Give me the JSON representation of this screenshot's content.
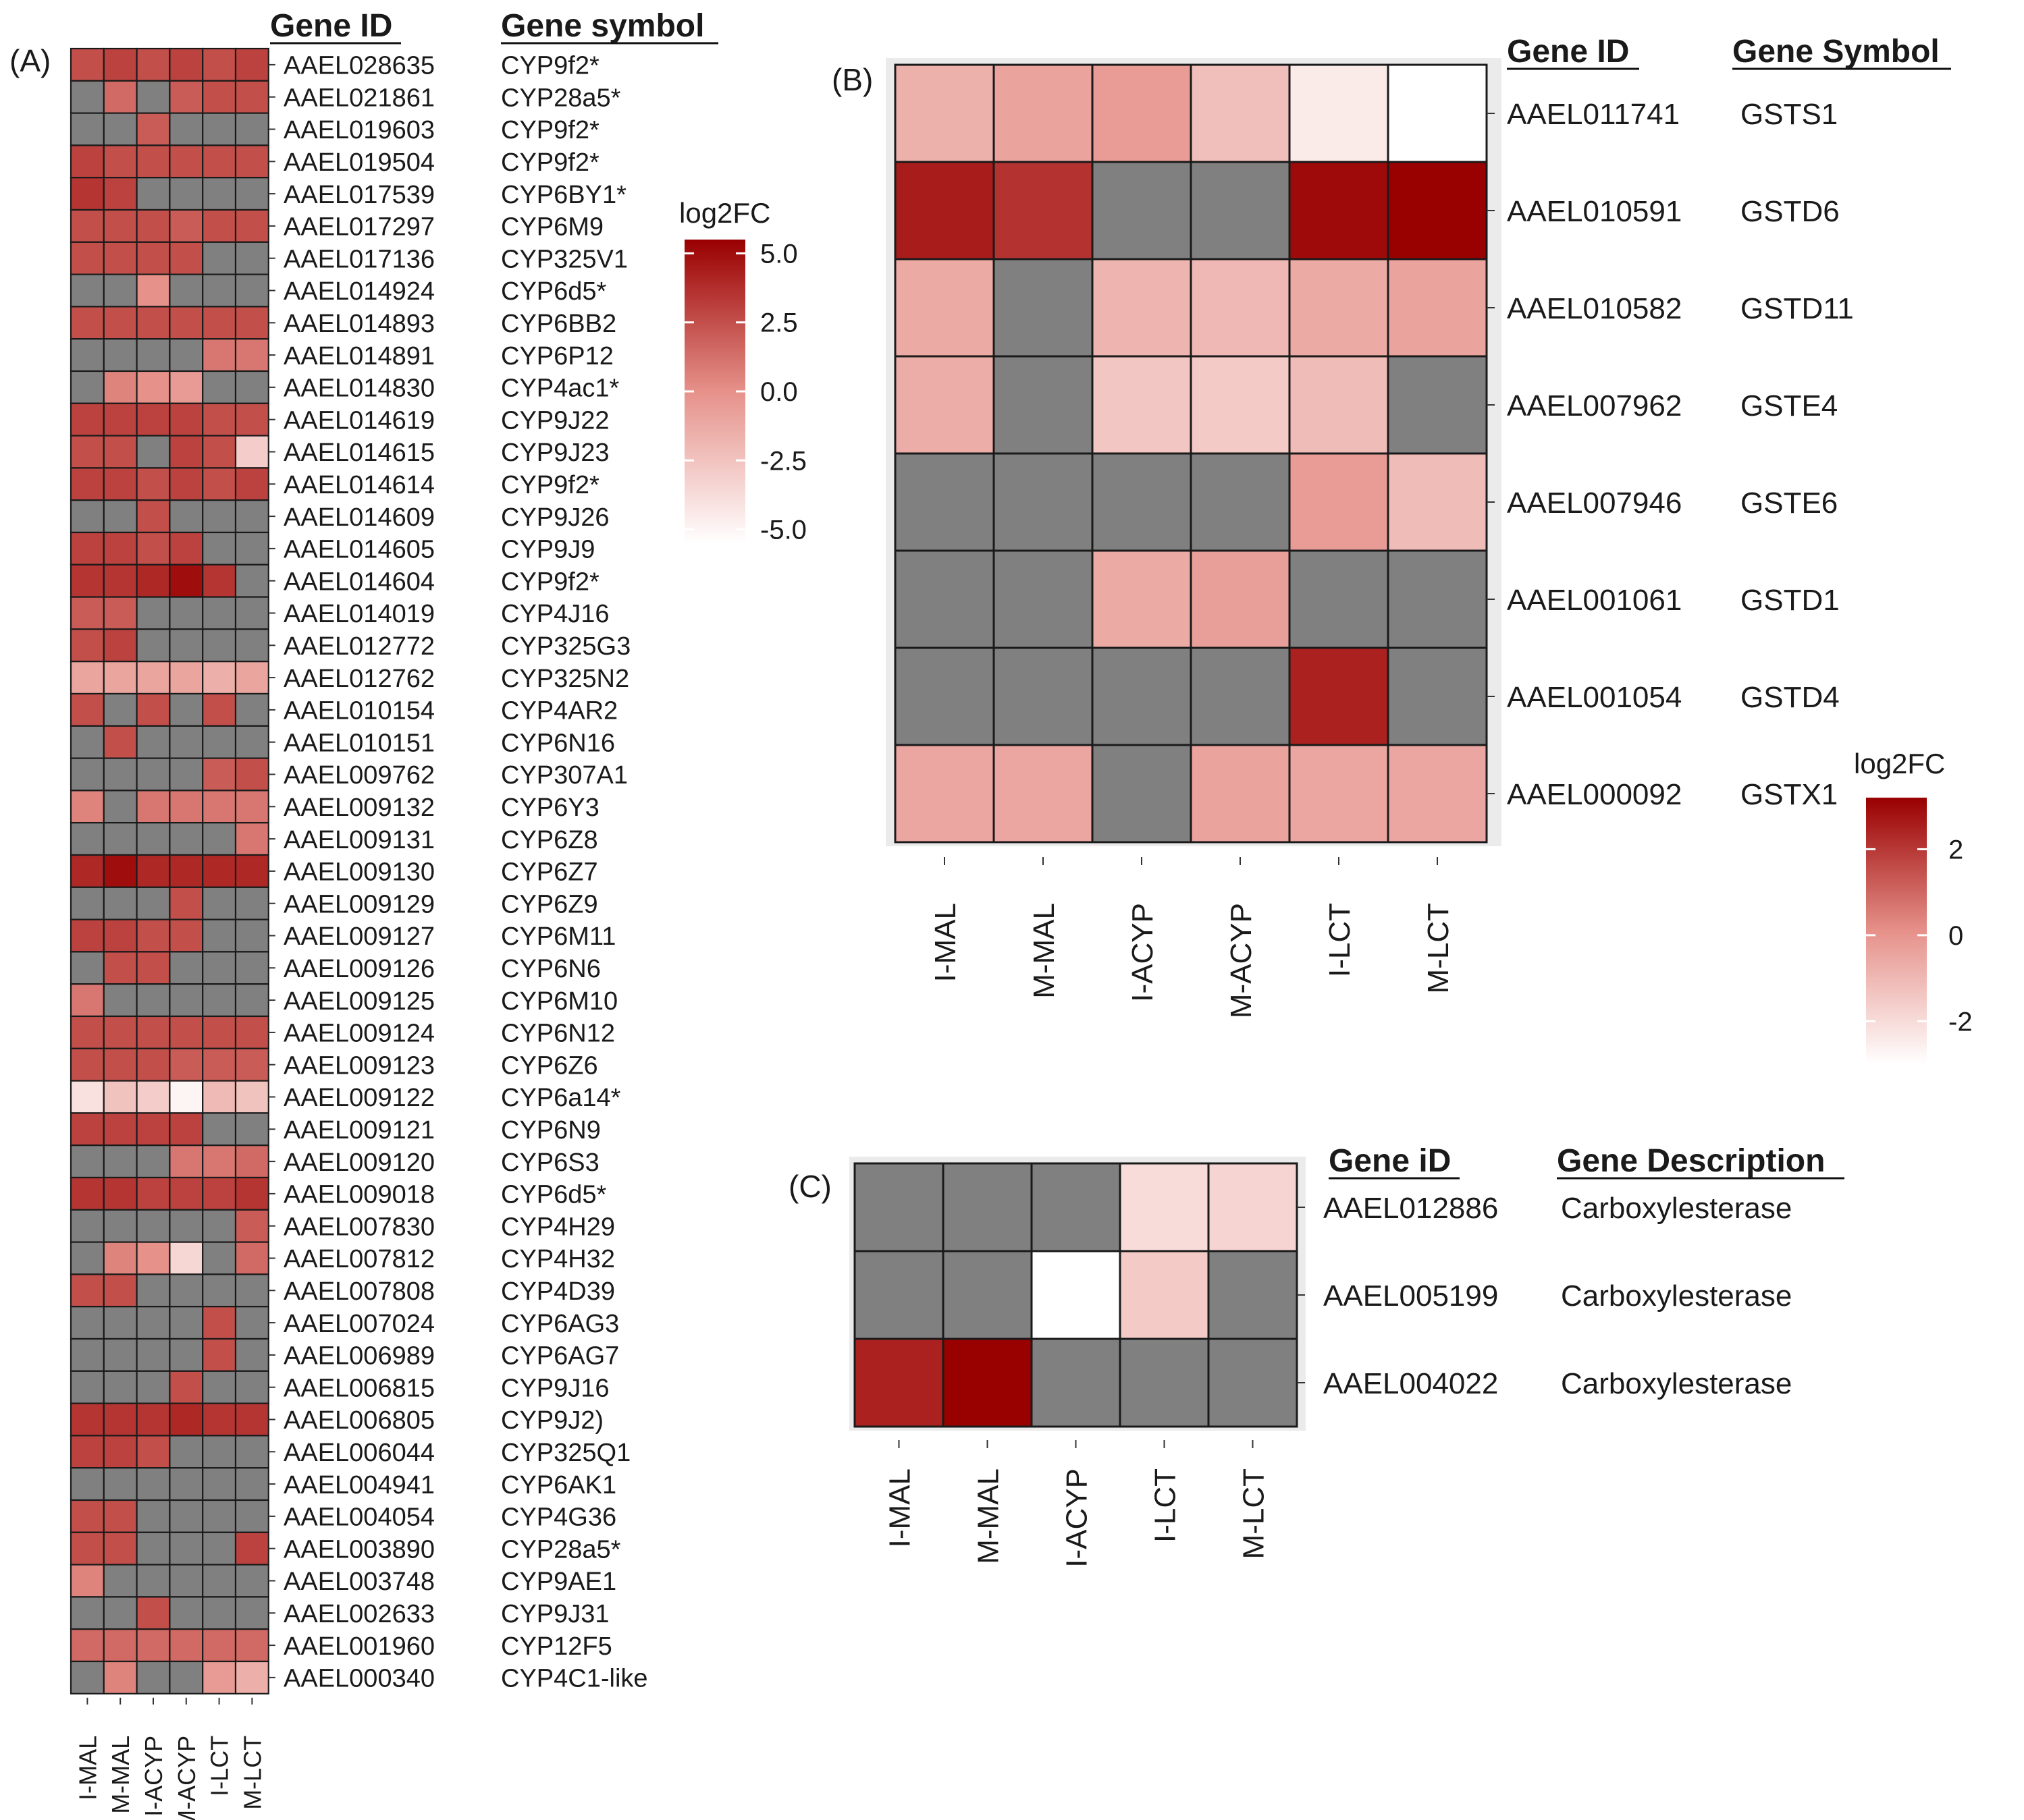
{
  "figure": {
    "missing_color": "#808080",
    "high_color": "#990000",
    "low_color": "#ffffff",
    "mid_color": "#e6918a"
  },
  "chart_data": [
    {
      "panel": "A",
      "label": "(A)",
      "type": "heatmap",
      "header_id": "Gene ID",
      "header_symbol": "Gene symbol",
      "columns": [
        "I-MAL",
        "M-MAL",
        "I-ACYP",
        "M-ACYP",
        "I-LCT",
        "M-LCT"
      ],
      "legend": {
        "title": "log2FC",
        "ticks": [
          5.0,
          2.5,
          0.0,
          -2.5,
          -5.0
        ],
        "tick_labels": [
          "5.0",
          "2.5",
          "0.0",
          "-2.5",
          "-5.0"
        ],
        "range": [
          -5.5,
          5.5
        ]
      },
      "rows": [
        {
          "id": "AAEL028635",
          "symbol": "CYP9f2*",
          "values": [
            2.5,
            3.0,
            2.5,
            3.0,
            2.5,
            3.0
          ]
        },
        {
          "id": "AAEL021861",
          "symbol": "CYP28a5*",
          "values": [
            null,
            1.5,
            null,
            2.0,
            2.5,
            2.5
          ]
        },
        {
          "id": "AAEL019603",
          "symbol": "CYP9f2*",
          "values": [
            null,
            null,
            2.0,
            null,
            null,
            null
          ]
        },
        {
          "id": "AAEL019504",
          "symbol": "CYP9f2*",
          "values": [
            3.0,
            2.5,
            2.5,
            2.5,
            2.5,
            2.5
          ]
        },
        {
          "id": "AAEL017539",
          "symbol": "CYP6BY1*",
          "values": [
            3.5,
            3.0,
            null,
            null,
            null,
            null
          ]
        },
        {
          "id": "AAEL017297",
          "symbol": "CYP6M9",
          "values": [
            2.5,
            2.5,
            2.5,
            2.0,
            2.5,
            2.5
          ]
        },
        {
          "id": "AAEL017136",
          "symbol": "CYP325V1",
          "values": [
            2.5,
            2.5,
            2.5,
            2.5,
            null,
            null
          ]
        },
        {
          "id": "AAEL014924",
          "symbol": "CYP6d5*",
          "values": [
            null,
            null,
            0.0,
            null,
            null,
            null
          ]
        },
        {
          "id": "AAEL014893",
          "symbol": "CYP6BB2",
          "values": [
            2.5,
            2.5,
            2.5,
            2.5,
            2.5,
            2.5
          ]
        },
        {
          "id": "AAEL014891",
          "symbol": "CYP6P12",
          "values": [
            null,
            null,
            null,
            null,
            1.0,
            1.0
          ]
        },
        {
          "id": "AAEL014830",
          "symbol": "CYP4ac1*",
          "values": [
            null,
            0.5,
            0.0,
            -0.5,
            null,
            null
          ]
        },
        {
          "id": "AAEL014619",
          "symbol": "CYP9J22",
          "values": [
            3.0,
            3.0,
            3.0,
            3.0,
            2.5,
            2.5
          ]
        },
        {
          "id": "AAEL014615",
          "symbol": "CYP9J23",
          "values": [
            2.5,
            2.5,
            null,
            3.0,
            2.5,
            -3.0
          ]
        },
        {
          "id": "AAEL014614",
          "symbol": "CYP9f2*",
          "values": [
            3.0,
            3.0,
            2.5,
            3.0,
            2.5,
            3.0
          ]
        },
        {
          "id": "AAEL014609",
          "symbol": "CYP9J26",
          "values": [
            null,
            null,
            2.5,
            null,
            null,
            null
          ]
        },
        {
          "id": "AAEL014605",
          "symbol": "CYP9J9",
          "values": [
            3.0,
            3.0,
            2.5,
            3.0,
            null,
            null
          ]
        },
        {
          "id": "AAEL014604",
          "symbol": "CYP9f2*",
          "values": [
            3.5,
            3.5,
            4.0,
            5.0,
            3.5,
            null
          ]
        },
        {
          "id": "AAEL014019",
          "symbol": "CYP4J16",
          "values": [
            2.0,
            2.0,
            null,
            null,
            null,
            null
          ]
        },
        {
          "id": "AAEL012772",
          "symbol": "CYP325G3",
          "values": [
            2.5,
            3.0,
            null,
            null,
            null,
            null
          ]
        },
        {
          "id": "AAEL012762",
          "symbol": "CYP325N2",
          "values": [
            -1.0,
            -1.0,
            -1.0,
            -1.0,
            -1.5,
            -1.0
          ]
        },
        {
          "id": "AAEL010154",
          "symbol": "CYP4AR2",
          "values": [
            2.5,
            null,
            2.5,
            null,
            2.5,
            null
          ]
        },
        {
          "id": "AAEL010151",
          "symbol": "CYP6N16",
          "values": [
            null,
            2.5,
            null,
            null,
            null,
            null
          ]
        },
        {
          "id": "AAEL009762",
          "symbol": "CYP307A1",
          "values": [
            null,
            null,
            null,
            null,
            2.0,
            2.5
          ]
        },
        {
          "id": "AAEL009132",
          "symbol": "CYP6Y3",
          "values": [
            0.5,
            null,
            1.0,
            1.0,
            1.0,
            1.0
          ]
        },
        {
          "id": "AAEL009131",
          "symbol": "CYP6Z8",
          "values": [
            null,
            null,
            null,
            null,
            null,
            1.0
          ]
        },
        {
          "id": "AAEL009130",
          "symbol": "CYP6Z7",
          "values": [
            4.0,
            5.0,
            4.0,
            4.0,
            4.0,
            4.0
          ]
        },
        {
          "id": "AAEL009129",
          "symbol": "CYP6Z9",
          "values": [
            null,
            null,
            null,
            2.5,
            null,
            null
          ]
        },
        {
          "id": "AAEL009127",
          "symbol": "CYP6M11",
          "values": [
            3.0,
            3.0,
            2.5,
            2.5,
            null,
            null
          ]
        },
        {
          "id": "AAEL009126",
          "symbol": "CYP6N6",
          "values": [
            null,
            2.5,
            2.5,
            null,
            null,
            null
          ]
        },
        {
          "id": "AAEL009125",
          "symbol": "CYP6M10",
          "values": [
            1.0,
            null,
            null,
            null,
            null,
            null
          ]
        },
        {
          "id": "AAEL009124",
          "symbol": "CYP6N12",
          "values": [
            2.5,
            2.5,
            2.5,
            2.5,
            2.5,
            2.5
          ]
        },
        {
          "id": "AAEL009123",
          "symbol": "CYP6Z6",
          "values": [
            2.5,
            2.5,
            2.5,
            2.0,
            2.0,
            2.0
          ]
        },
        {
          "id": "AAEL009122",
          "symbol": "CYP6a14*",
          "values": [
            -4.0,
            -2.5,
            -3.0,
            -5.0,
            -2.0,
            -2.5
          ]
        },
        {
          "id": "AAEL009121",
          "symbol": "CYP6N9",
          "values": [
            3.0,
            3.0,
            3.0,
            3.0,
            null,
            null
          ]
        },
        {
          "id": "AAEL009120",
          "symbol": "CYP6S3",
          "values": [
            null,
            null,
            null,
            1.0,
            1.0,
            1.5
          ]
        },
        {
          "id": "AAEL009018",
          "symbol": "CYP6d5*",
          "values": [
            3.5,
            3.5,
            3.0,
            3.0,
            3.0,
            3.5
          ]
        },
        {
          "id": "AAEL007830",
          "symbol": "CYP4H29",
          "values": [
            null,
            null,
            null,
            null,
            null,
            2.0
          ]
        },
        {
          "id": "AAEL007812",
          "symbol": "CYP4H32",
          "values": [
            null,
            0.5,
            0.0,
            -3.5,
            null,
            1.5
          ]
        },
        {
          "id": "AAEL007808",
          "symbol": "CYP4D39",
          "values": [
            2.5,
            2.5,
            null,
            null,
            null,
            null
          ]
        },
        {
          "id": "AAEL007024",
          "symbol": "CYP6AG3",
          "values": [
            null,
            null,
            null,
            null,
            2.5,
            null
          ]
        },
        {
          "id": "AAEL006989",
          "symbol": "CYP6AG7",
          "values": [
            null,
            null,
            null,
            null,
            2.5,
            null
          ]
        },
        {
          "id": "AAEL006815",
          "symbol": "CYP9J16",
          "values": [
            null,
            null,
            null,
            2.5,
            null,
            null
          ]
        },
        {
          "id": "AAEL006805",
          "symbol": "CYP9J2)",
          "values": [
            3.5,
            3.5,
            3.5,
            4.0,
            3.5,
            3.5
          ]
        },
        {
          "id": "AAEL006044",
          "symbol": "CYP325Q1",
          "values": [
            3.0,
            3.0,
            2.5,
            null,
            null,
            null
          ]
        },
        {
          "id": "AAEL004941",
          "symbol": "CYP6AK1",
          "values": [
            null,
            null,
            null,
            null,
            null,
            null
          ]
        },
        {
          "id": "AAEL004054",
          "symbol": "CYP4G36",
          "values": [
            2.5,
            2.5,
            null,
            null,
            null,
            null
          ]
        },
        {
          "id": "AAEL003890",
          "symbol": "CYP28a5*",
          "values": [
            2.5,
            2.5,
            null,
            null,
            null,
            3.0
          ]
        },
        {
          "id": "AAEL003748",
          "symbol": "CYP9AE1",
          "values": [
            0.5,
            null,
            null,
            null,
            null,
            null
          ]
        },
        {
          "id": "AAEL002633",
          "symbol": "CYP9J31",
          "values": [
            null,
            null,
            2.5,
            null,
            null,
            null
          ]
        },
        {
          "id": "AAEL001960",
          "symbol": "CYP12F5",
          "values": [
            1.5,
            1.5,
            1.5,
            1.5,
            1.5,
            1.5
          ]
        },
        {
          "id": "AAEL000340",
          "symbol": "CYP4C1-like",
          "values": [
            null,
            0.5,
            null,
            null,
            -0.5,
            -1.5
          ]
        }
      ]
    },
    {
      "panel": "B",
      "label": "(B)",
      "type": "heatmap",
      "header_id": "Gene ID",
      "header_symbol": "Gene Symbol",
      "columns": [
        "I-MAL",
        "M-MAL",
        "I-ACYP",
        "M-ACYP",
        "I-LCT",
        "M-LCT"
      ],
      "legend": {
        "title": "log2FC",
        "ticks": [
          2,
          0,
          -2
        ],
        "tick_labels": [
          "2",
          "0",
          "-2"
        ],
        "range": [
          -3.0,
          3.2
        ]
      },
      "rows": [
        {
          "id": "AAEL011741",
          "symbol": "GSTS1",
          "values": [
            -0.8,
            -0.4,
            -0.2,
            -1.2,
            -2.4,
            -3.0
          ]
        },
        {
          "id": "AAEL010591",
          "symbol": "GSTD6",
          "values": [
            2.6,
            2.1,
            null,
            null,
            3.0,
            3.2
          ]
        },
        {
          "id": "AAEL010582",
          "symbol": "GSTD11",
          "values": [
            -0.6,
            null,
            -0.9,
            -1.0,
            -0.6,
            -0.4
          ]
        },
        {
          "id": "AAEL007962",
          "symbol": "GSTE4",
          "values": [
            -0.7,
            null,
            -1.4,
            -1.5,
            -1.1,
            null
          ]
        },
        {
          "id": "AAEL007946",
          "symbol": "GSTE6",
          "values": [
            null,
            null,
            null,
            null,
            -0.2,
            -1.1
          ]
        },
        {
          "id": "AAEL001061",
          "symbol": "GSTD1",
          "values": [
            null,
            null,
            -0.6,
            -0.3,
            null,
            null
          ]
        },
        {
          "id": "AAEL001054",
          "symbol": "GSTD4",
          "values": [
            null,
            null,
            null,
            null,
            2.5,
            null
          ]
        },
        {
          "id": "AAEL000092",
          "symbol": "GSTX1",
          "values": [
            -0.5,
            -0.5,
            null,
            -0.4,
            -0.5,
            -0.5
          ]
        }
      ]
    },
    {
      "panel": "C",
      "label": "(C)",
      "type": "heatmap",
      "header_id": "Gene iD",
      "header_symbol": "Gene Description",
      "columns": [
        "I-MAL",
        "M-MAL",
        "I-ACYP",
        "I-LCT",
        "M-LCT"
      ],
      "legend": null,
      "range": [
        -3.0,
        3.2
      ],
      "rows": [
        {
          "id": "AAEL012886",
          "symbol": "Carboxylesterase",
          "values": [
            null,
            null,
            null,
            -2.0,
            -1.8
          ]
        },
        {
          "id": "AAEL005199",
          "symbol": "Carboxylesterase",
          "values": [
            null,
            null,
            -3.0,
            -1.5,
            null
          ]
        },
        {
          "id": "AAEL004022",
          "symbol": "Carboxylesterase",
          "values": [
            2.5,
            3.2,
            null,
            null,
            null
          ]
        }
      ]
    }
  ]
}
